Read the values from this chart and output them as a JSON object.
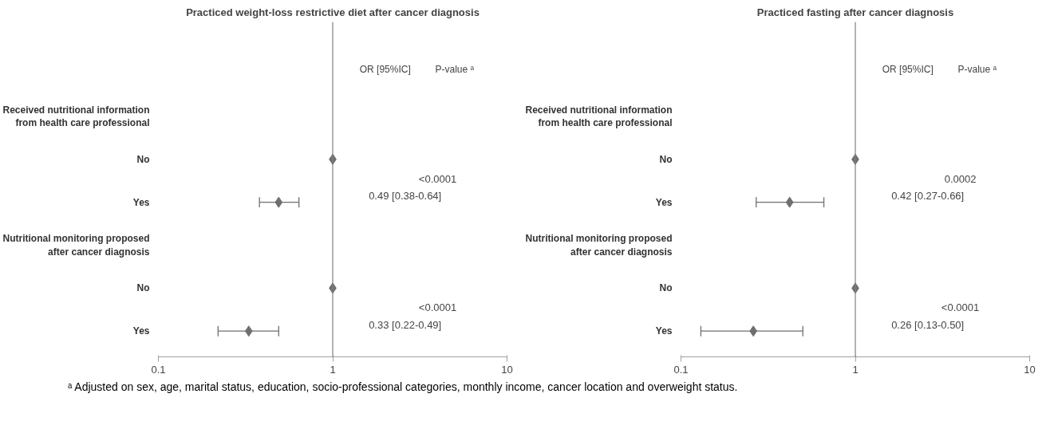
{
  "chart_data": [
    {
      "type": "scatter",
      "title": "Practiced weight-loss restrictive diet after cancer diagnosis",
      "orientation": "horizontal",
      "log": "x",
      "categories": [
        "Received nutritional information\nfrom health care professional",
        "No",
        "Yes",
        "Nutritional monitoring proposed\nafter cancer diagnosis",
        "No",
        "Yes"
      ],
      "values": [
        null,
        1,
        0.49,
        null,
        1,
        0.33
      ],
      "errors": [
        null,
        null,
        [
          0.38,
          0.64
        ],
        null,
        null,
        [
          0.22,
          0.49
        ]
      ],
      "color": "#6f6f6f",
      "marker": "diamond",
      "xlim": [
        0.1,
        10
      ],
      "xticks": [
        0.1,
        1,
        10
      ],
      "ref_lines": [
        {
          "axis": "x",
          "value": 1,
          "color": "#808080"
        }
      ],
      "annotations": [
        "OR [95%IC]",
        "P-value ᵃ",
        "<0.0001",
        "0.49 [0.38-0.64]",
        "<0.0001",
        "0.33 [0.22-0.49]",
        "ᵃ Adjusted on sex, age, marital status, education, socio-professional categories, monthly income, cancer location and overweight status."
      ]
    },
    {
      "type": "scatter",
      "title": "Practiced fasting after cancer diagnosis",
      "orientation": "horizontal",
      "log": "x",
      "categories": [
        "Received nutritional information\nfrom health care professional",
        "No",
        "Yes",
        "Nutritional monitoring proposed\nafter cancer diagnosis",
        "No",
        "Yes"
      ],
      "values": [
        null,
        1,
        0.42,
        null,
        1,
        0.26
      ],
      "errors": [
        null,
        null,
        [
          0.27,
          0.66
        ],
        null,
        null,
        [
          0.13,
          0.5
        ]
      ],
      "color": "#6f6f6f",
      "marker": "diamond",
      "xlim": [
        0.1,
        10
      ],
      "xticks": [
        0.1,
        1,
        10
      ],
      "ref_lines": [
        {
          "axis": "x",
          "value": 1,
          "color": "#808080"
        }
      ],
      "annotations": [
        "OR [95%IC]",
        "P-value ᵃ",
        "0.0002",
        "0.42 [0.27-0.66]",
        "<0.0001",
        "0.26 [0.13-0.50]"
      ]
    }
  ]
}
